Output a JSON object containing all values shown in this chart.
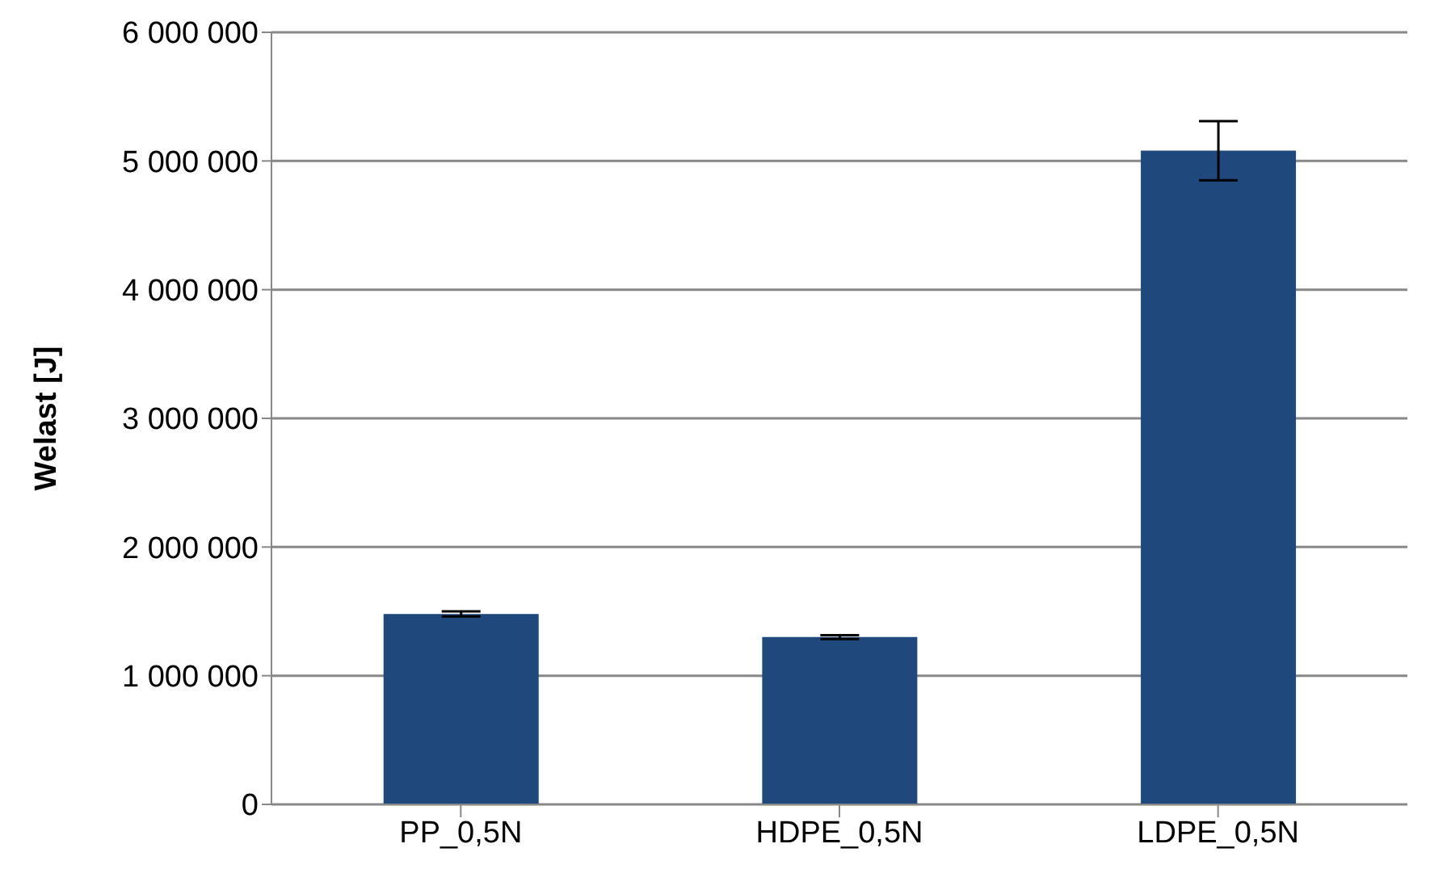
{
  "chart_data": {
    "type": "bar",
    "ylabel": "Welast [J]",
    "categories": [
      "PP_0,5N",
      "HDPE_0,5N",
      "LDPE_0,5N"
    ],
    "values": [
      1480000,
      1300000,
      5080000
    ],
    "errors": [
      20000,
      15000,
      230000
    ],
    "color": "#1f497d",
    "ylim": [
      0,
      6000000
    ],
    "yticks": [
      {
        "value": 0,
        "label": "0"
      },
      {
        "value": 1000000,
        "label": "1 000 000"
      },
      {
        "value": 2000000,
        "label": "2 000 000"
      },
      {
        "value": 3000000,
        "label": "3 000 000"
      },
      {
        "value": 4000000,
        "label": "4 000 000"
      },
      {
        "value": 5000000,
        "label": "5 000 000"
      },
      {
        "value": 6000000,
        "label": "6 000 000"
      }
    ],
    "grid": "y",
    "legend": false
  }
}
